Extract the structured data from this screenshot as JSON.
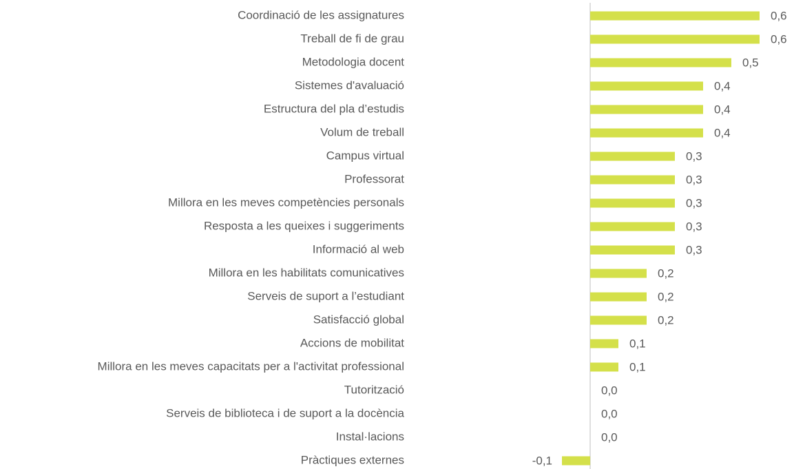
{
  "chart_data": {
    "type": "barh",
    "categories": [
      "Coordinació de les assignatures",
      "Treball de fi de grau",
      "Metodologia docent",
      "Sistemes d'avaluació",
      "Estructura del pla d’estudis",
      "Volum de treball",
      "Campus virtual",
      "Professorat",
      "Millora en les meves competències personals",
      "Resposta a les queixes i suggeriments",
      "Informació al web",
      "Millora en les habilitats comunicatives",
      "Serveis de suport a l’estudiant",
      "Satisfacció global",
      "Accions de mobilitat",
      "Millora en les meves capacitats per a l'activitat professional",
      "Tutorització",
      "Serveis de biblioteca i de suport a la docència",
      "Instal·lacions",
      "Pràctiques externes"
    ],
    "values": [
      0.6,
      0.6,
      0.5,
      0.4,
      0.4,
      0.4,
      0.3,
      0.3,
      0.3,
      0.3,
      0.3,
      0.2,
      0.2,
      0.2,
      0.1,
      0.1,
      0.0,
      0.0,
      0.0,
      -0.1
    ],
    "value_labels": [
      "0,6",
      "0,6",
      "0,5",
      "0,4",
      "0,4",
      "0,4",
      "0,3",
      "0,3",
      "0,3",
      "0,3",
      "0,3",
      "0,2",
      "0,2",
      "0,2",
      "0,1",
      "0,1",
      "0,0",
      "0,0",
      "0,0",
      "-0,1"
    ],
    "color": "#d4e04a",
    "xlim": [
      -0.1,
      0.6
    ]
  }
}
